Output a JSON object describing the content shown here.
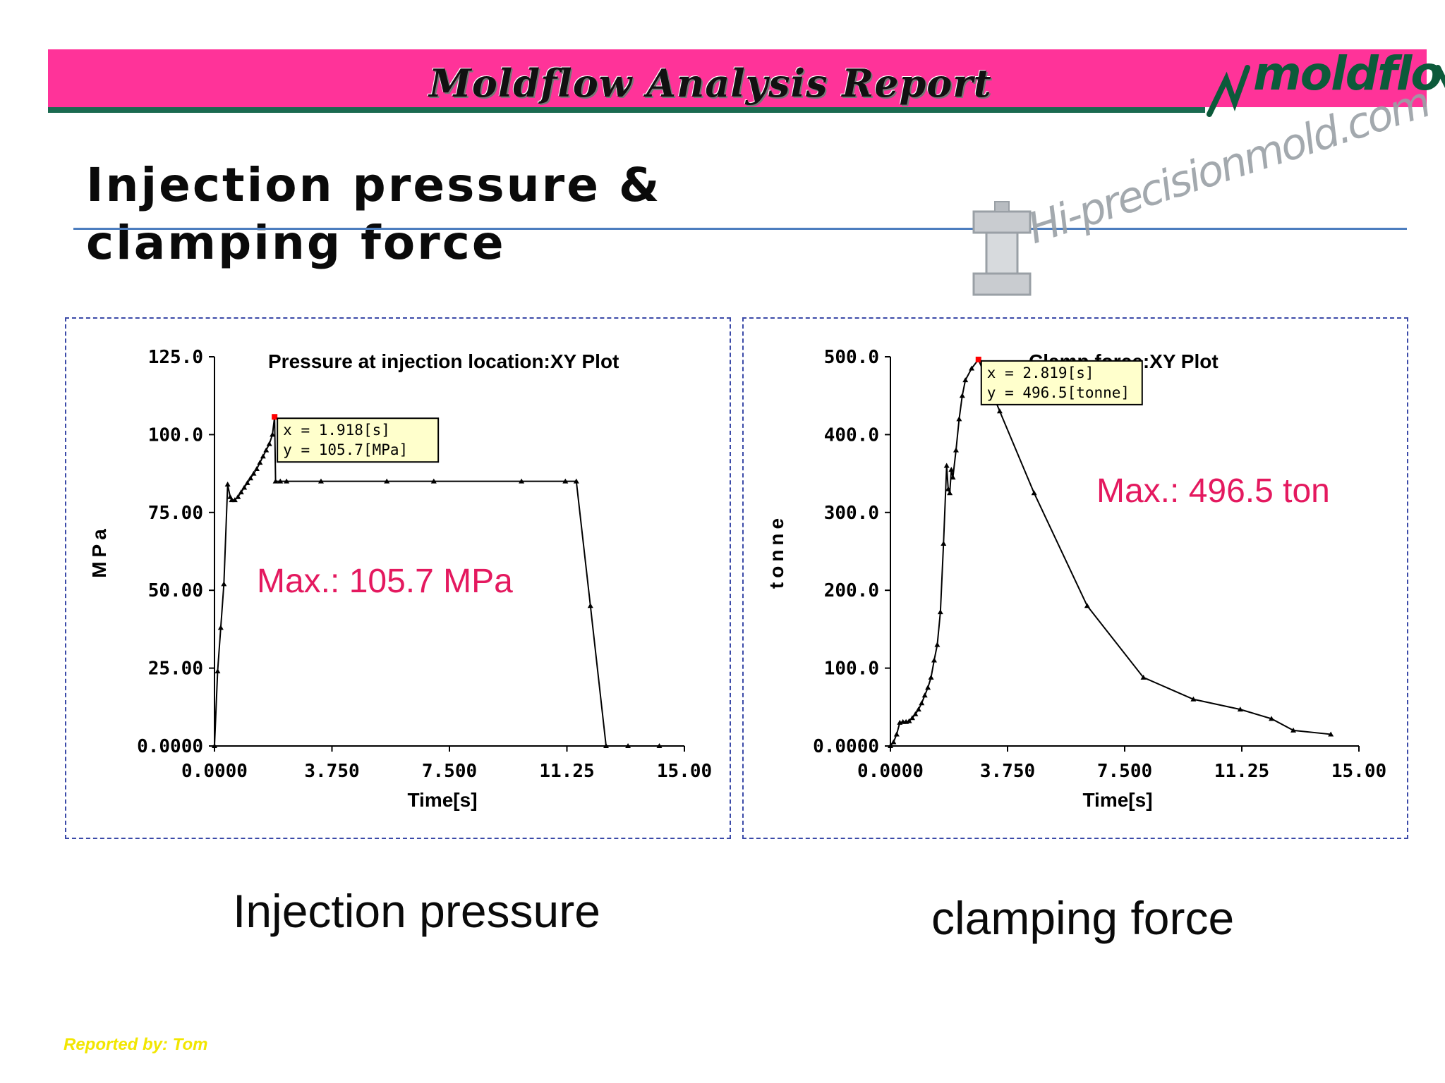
{
  "header": {
    "title": "Moldflow Analysis Report",
    "logo_text": "moldflow",
    "colors": {
      "banner": "#ff3399",
      "banner_line": "#1a6a50",
      "logo": "#0c5a3a"
    }
  },
  "page": {
    "title_line1": "Injection pressure &",
    "title_line2": "clamping force"
  },
  "watermark": {
    "text": "Hi-precisionmold.com",
    "icon": "mold-block-icon"
  },
  "captions": {
    "left": "Injection pressure",
    "right": "clamping force"
  },
  "footer": {
    "reported_by": "Reported by: Tom"
  },
  "chart_data": [
    {
      "type": "line",
      "title": "Pressure at injection location:XY Plot",
      "xlabel": "Time[s]",
      "ylabel": "MPa",
      "xlim": [
        0,
        15
      ],
      "ylim": [
        0,
        125
      ],
      "xticks": [
        "0.0000",
        "3.750",
        "7.500",
        "11.25",
        "15.00"
      ],
      "yticks": [
        "0.0000",
        "25.00",
        "50.00",
        "75.00",
        "100.0",
        "125.0"
      ],
      "grid": false,
      "annotation": "Max.: 105.7 MPa",
      "tooltip": {
        "x_text": "x = 1.918[s]",
        "y_text": "y = 105.7[MPa]",
        "x": 1.918,
        "y": 105.7
      },
      "series": [
        {
          "x": [
            0.0,
            0.1,
            0.2,
            0.3,
            0.42,
            0.5,
            0.55,
            0.65,
            0.75,
            0.85,
            0.95,
            1.05,
            1.15,
            1.25,
            1.35,
            1.45,
            1.55,
            1.65,
            1.75,
            1.85,
            1.918,
            1.95,
            2.1,
            2.3,
            3.4,
            5.5,
            7.0,
            9.8,
            11.2,
            11.55,
            12.0,
            12.5,
            13.2,
            14.2
          ],
          "y": [
            0,
            24,
            38,
            52,
            84,
            80,
            79,
            79,
            80,
            81.5,
            83,
            84.5,
            86,
            87.5,
            89,
            91,
            93,
            95,
            97,
            100,
            105.7,
            85,
            85,
            85,
            85,
            85,
            85,
            85,
            85,
            85,
            45,
            0,
            0,
            0
          ]
        }
      ]
    },
    {
      "type": "line",
      "title": "Clamp force:XY Plot",
      "xlabel": "Time[s]",
      "ylabel": "tonne",
      "xlim": [
        0,
        15
      ],
      "ylim": [
        0,
        500
      ],
      "xticks": [
        "0.0000",
        "3.750",
        "7.500",
        "11.25",
        "15.00"
      ],
      "yticks": [
        "0.0000",
        "100.0",
        "200.0",
        "300.0",
        "400.0",
        "500.0"
      ],
      "grid": false,
      "annotation": "Max.: 496.5 ton",
      "tooltip": {
        "x_text": "x = 2.819[s]",
        "y_text": "y = 496.5[tonne]",
        "x": 2.819,
        "y": 496.5
      },
      "series": [
        {
          "x": [
            0.0,
            0.1,
            0.2,
            0.3,
            0.4,
            0.5,
            0.6,
            0.7,
            0.8,
            0.9,
            1.0,
            1.1,
            1.2,
            1.3,
            1.4,
            1.5,
            1.6,
            1.7,
            1.8,
            1.85,
            1.9,
            1.95,
            2.0,
            2.1,
            2.2,
            2.3,
            2.4,
            2.6,
            2.819,
            3.5,
            4.6,
            6.3,
            8.1,
            9.7,
            11.2,
            12.2,
            12.9,
            14.1
          ],
          "y": [
            0,
            5,
            15,
            30,
            31,
            31,
            32,
            36,
            41,
            47,
            55,
            65,
            75,
            88,
            110,
            130,
            172,
            260,
            360,
            330,
            325,
            355,
            345,
            380,
            420,
            450,
            470,
            485,
            496.5,
            430,
            325,
            180,
            88,
            60,
            47,
            35,
            20,
            15
          ]
        }
      ]
    }
  ]
}
